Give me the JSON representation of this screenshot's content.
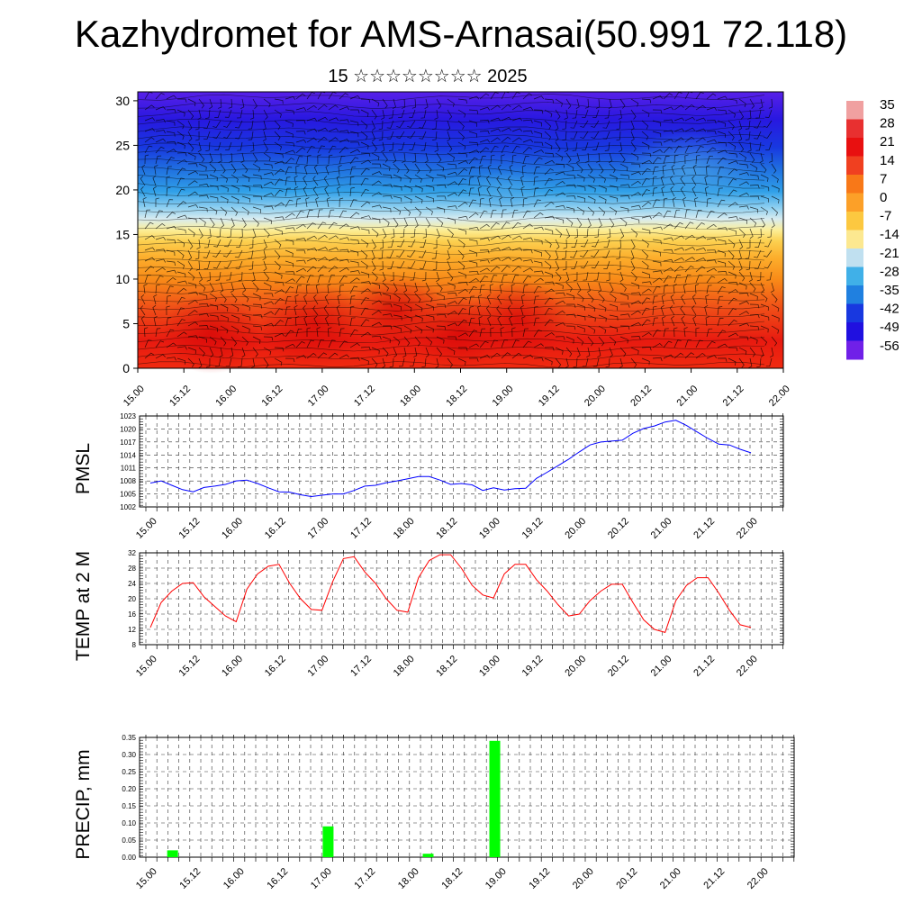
{
  "title": "Kazhydromet for AMS-Arnasai(50.991 72.118)",
  "subtitle": "15 ☆☆☆☆☆☆☆☆ 2025",
  "time_labels": [
    "15.00",
    "15.12",
    "16.00",
    "16.12",
    "17.00",
    "17.12",
    "18.00",
    "18.12",
    "19.00",
    "19.12",
    "20.00",
    "20.12",
    "21.00",
    "21.12",
    "22.00"
  ],
  "colors": {
    "pmsl_line": "#0000ff",
    "temp_line": "#ff0000",
    "precip_bar": "#00ff00"
  },
  "chart_data": [
    {
      "type": "heatmap",
      "name_visible": false,
      "x_labels": [
        "15.00",
        "15.12",
        "16.00",
        "16.12",
        "17.00",
        "17.12",
        "18.00",
        "18.12",
        "19.00",
        "19.12",
        "20.00",
        "20.12",
        "21.00",
        "21.12",
        "22.00"
      ],
      "y_ticks": [
        "0",
        "5",
        "10",
        "15",
        "20",
        "25",
        "30"
      ],
      "ylim": [
        0,
        31
      ],
      "colorbar": {
        "labels": [
          "35",
          "28",
          "21",
          "14",
          "7",
          "0",
          "-7",
          "-14",
          "-21",
          "-28",
          "-35",
          "-42",
          "-49",
          "-56"
        ],
        "colors": [
          "#f0a0a0",
          "#e83030",
          "#e81010",
          "#f04020",
          "#f87818",
          "#fca028",
          "#fcc840",
          "#fce890",
          "#c0e0f0",
          "#40b0e8",
          "#2080e0",
          "#1838e0",
          "#2010e0",
          "#7020e8"
        ]
      },
      "wind_barbs": true
    },
    {
      "type": "line",
      "ylabel": "PMSL",
      "y_ticks": [
        "1002",
        "1005",
        "1008",
        "1011",
        "1014",
        "1017",
        "1020",
        "1023"
      ],
      "ylim": [
        1002,
        1023
      ],
      "x_labels": [
        "15.00",
        "15.12",
        "16.00",
        "16.12",
        "17.00",
        "17.12",
        "18.00",
        "18.12",
        "19.00",
        "19.12",
        "20.00",
        "20.12",
        "21.00",
        "21.12",
        "22.00"
      ],
      "x": [
        0,
        3,
        6,
        9,
        12,
        15,
        18,
        21,
        24,
        27,
        30,
        33,
        36,
        39,
        42,
        45,
        48,
        51,
        54,
        57,
        60,
        63,
        66,
        69,
        72,
        75,
        78,
        81,
        84,
        87,
        90,
        93,
        96,
        99,
        102,
        105,
        108,
        111,
        114,
        117,
        120,
        123,
        126,
        129,
        132,
        135,
        138,
        141,
        144,
        147,
        150,
        153,
        156,
        159,
        162,
        165,
        168
      ],
      "values": [
        1007.5,
        1008,
        1007,
        1006,
        1005.5,
        1006.5,
        1006.8,
        1007.2,
        1008,
        1008.2,
        1007.4,
        1006.4,
        1005.5,
        1005.4,
        1004.8,
        1004.4,
        1004.7,
        1005,
        1005,
        1005.8,
        1006.8,
        1007,
        1007.6,
        1008,
        1008.5,
        1009,
        1009,
        1008.2,
        1007.2,
        1007.4,
        1007.1,
        1005.8,
        1006.4,
        1005.9,
        1006.2,
        1006.3,
        1008.6,
        1010,
        1011.5,
        1013,
        1014.7,
        1016.3,
        1017,
        1017.2,
        1017.4,
        1019,
        1020.1,
        1020.7,
        1021.6,
        1022,
        1020.8,
        1019.3,
        1017.8,
        1016.5,
        1016.3,
        1015.3,
        1014.5
      ]
    },
    {
      "type": "line",
      "ylabel": "TEMP at 2 M",
      "y_ticks": [
        "8",
        "12",
        "16",
        "20",
        "24",
        "28",
        "32"
      ],
      "ylim": [
        8,
        32
      ],
      "x_labels": [
        "15.00",
        "15.12",
        "16.00",
        "16.12",
        "17.00",
        "17.12",
        "18.00",
        "18.12",
        "19.00",
        "19.12",
        "20.00",
        "20.12",
        "21.00",
        "21.12",
        "22.00"
      ],
      "x": [
        0,
        3,
        6,
        9,
        12,
        15,
        18,
        21,
        24,
        27,
        30,
        33,
        36,
        39,
        42,
        45,
        48,
        51,
        54,
        57,
        60,
        63,
        66,
        69,
        72,
        75,
        78,
        81,
        84,
        87,
        90,
        93,
        96,
        99,
        102,
        105,
        108,
        111,
        114,
        117,
        120,
        123,
        126,
        129,
        132,
        135,
        138,
        141,
        144,
        147,
        150,
        153,
        156,
        159,
        162,
        165,
        168
      ],
      "values": [
        12.5,
        19,
        22,
        24,
        24.2,
        20.5,
        18,
        15.5,
        14,
        22.5,
        26.5,
        28.5,
        29,
        24,
        20,
        17.2,
        17,
        24.5,
        30.5,
        31,
        27,
        24,
        20,
        17,
        16.5,
        25.5,
        30,
        31.5,
        31.5,
        28,
        23.5,
        21,
        20.2,
        26.5,
        29,
        29,
        25,
        22,
        18.5,
        15.5,
        16,
        19.5,
        22,
        23.8,
        23.8,
        19,
        14.5,
        12,
        11.2,
        19.5,
        23.5,
        25.5,
        25.5,
        21.5,
        17,
        13.2,
        12.5
      ]
    },
    {
      "type": "bar",
      "ylabel": "PRECIP, mm",
      "y_ticks": [
        "0.00",
        "0.05",
        "0.10",
        "0.15",
        "0.20",
        "0.25",
        "0.30",
        "0.35"
      ],
      "ylim": [
        0,
        0.35
      ],
      "x_labels": [
        "15.00",
        "15.12",
        "16.00",
        "16.12",
        "17.00",
        "17.12",
        "18.00",
        "18.12",
        "19.00",
        "19.12",
        "20.00",
        "20.12",
        "21.00",
        "21.12",
        "22.00"
      ],
      "bars": [
        {
          "x": 6,
          "value": 0.02
        },
        {
          "x": 48,
          "value": 0.09
        },
        {
          "x": 75,
          "value": 0.01
        },
        {
          "x": 93,
          "value": 0.34
        }
      ]
    }
  ]
}
